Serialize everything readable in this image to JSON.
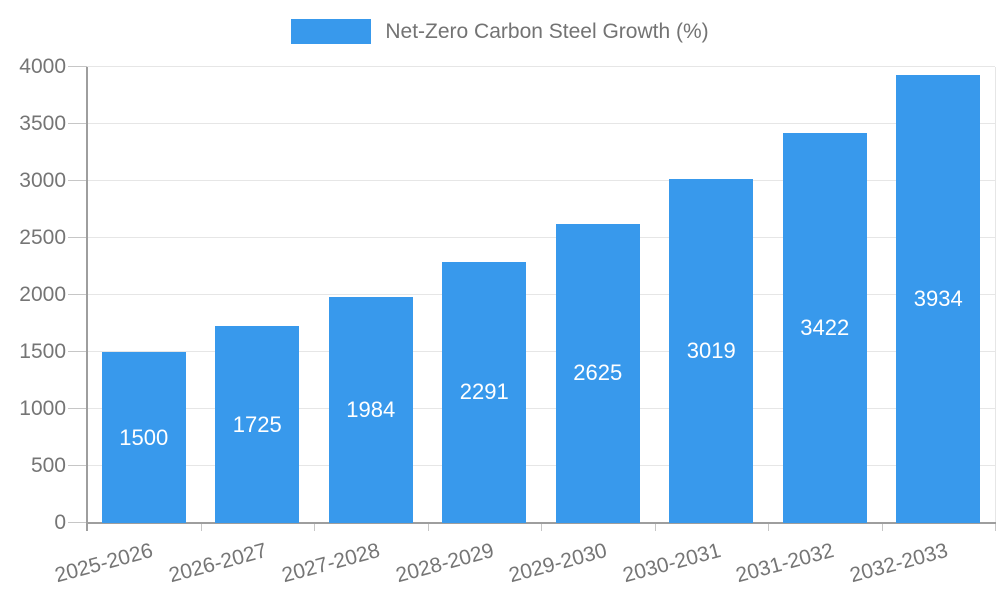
{
  "chart_data": {
    "type": "bar",
    "title": "",
    "legend_label": "Net-Zero Carbon Steel Growth (%)",
    "legend_position": "top",
    "categories": [
      "2025-2026",
      "2026-2027",
      "2027-2028",
      "2028-2029",
      "2029-2030",
      "2030-2031",
      "2031-2032",
      "2032-2033"
    ],
    "series": [
      {
        "name": "Net-Zero Carbon Steel Growth (%)",
        "values": [
          1500,
          1725,
          1984,
          2291,
          2625,
          3019,
          3422,
          3934
        ]
      }
    ],
    "value_labels": [
      "1500",
      "1725",
      "1984",
      "2291",
      "2625",
      "3019",
      "3422",
      "3934"
    ],
    "xlabel": "",
    "ylabel": "",
    "ylim": [
      0,
      4000
    ],
    "yticks": [
      0,
      500,
      1000,
      1500,
      2000,
      2500,
      3000,
      3500,
      4000
    ],
    "grid": true,
    "xlabel_rotation_deg": -15,
    "colors": {
      "bar": "#3899ec",
      "value_label": "#ffffff",
      "axis_text": "#757575",
      "legend_text": "#737373",
      "gridline": "#e6e6e6",
      "axis_line": "#9e9e9e",
      "tick_line": "#c6c6c6",
      "background": "#ffffff"
    }
  }
}
